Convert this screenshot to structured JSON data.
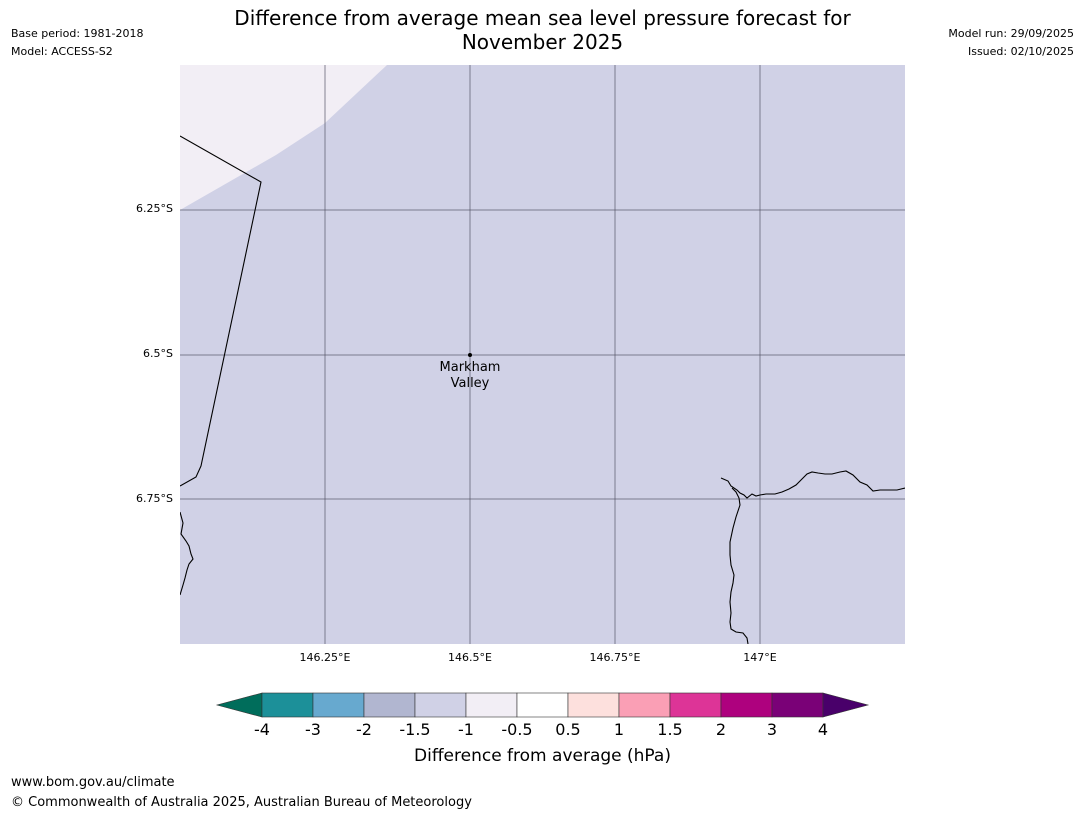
{
  "title": "Difference from average mean sea level pressure forecast for November 2025",
  "meta": {
    "base_period": "Base period: 1981-2018",
    "model": "Model: ACCESS-S2",
    "model_run": "Model run: 29/09/2025",
    "issued": "Issued: 02/10/2025"
  },
  "map": {
    "latitude_labels": [
      "6.25°S",
      "6.5°S",
      "6.75°S"
    ],
    "longitude_labels": [
      "146.25°E",
      "146.5°E",
      "146.75°E",
      "147°E"
    ],
    "place": {
      "line1": "Markham",
      "line2": "Valley"
    },
    "colors": {
      "main_fill": "#d0d1e6",
      "light_fill": "#f2eef5",
      "coastline": "#000000",
      "gridline": "#555566"
    }
  },
  "legend": {
    "label": "Difference from average (hPa)",
    "tick_labels": [
      "-4",
      "-3",
      "-2",
      "-1.5",
      "-1",
      "-0.5",
      "0.5",
      "1",
      "1.5",
      "2",
      "3",
      "4"
    ],
    "colors": [
      "#006d5b",
      "#1c9099",
      "#67a9cf",
      "#b1b6d0",
      "#d0d1e6",
      "#f2eef5",
      "#ffffff",
      "#fde0dd",
      "#fa9fb5",
      "#dd3497",
      "#ae017e",
      "#7a0177",
      "#49006a"
    ]
  },
  "footer": {
    "url": "www.bom.gov.au/climate",
    "copyright": "© Commonwealth of Australia 2025, Australian Bureau of Meteorology"
  }
}
